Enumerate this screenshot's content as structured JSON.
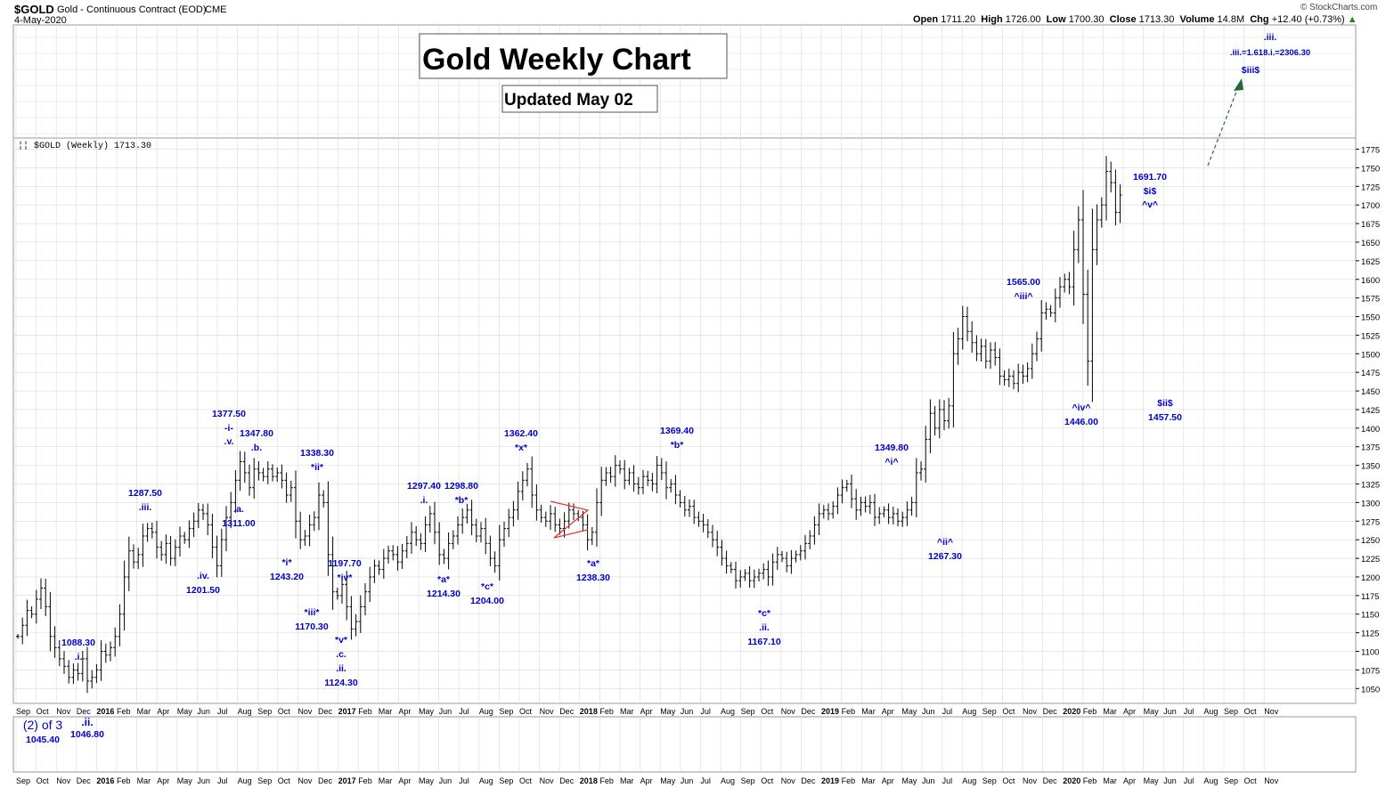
{
  "header": {
    "symbol": "$GOLD",
    "description": "Gold - Continuous Contract (EOD)",
    "exchange": "CME",
    "date": "4-May-2020",
    "copyright": "© StockCharts.com",
    "open_label": "Open",
    "open": "1711.20",
    "high_label": "High",
    "high": "1726.00",
    "low_label": "Low",
    "low": "1700.30",
    "close_label": "Close",
    "close": "1713.30",
    "volume_label": "Volume",
    "volume": "14.8M",
    "chg_label": "Chg",
    "chg": "+12.40 (+0.73%)"
  },
  "title_box": "Gold Weekly Chart",
  "subtitle_box": "Updated May 02",
  "legend": "$GOLD (Weekly) 1713.30",
  "colors": {
    "bars": "#000000",
    "annotation": "#0000cc",
    "triangle": "#e03030",
    "projection": "#1f6b3a",
    "grid": "#d9d9d9"
  },
  "chart_data": {
    "type": "bar",
    "subtype": "ohlc",
    "title": "Gold Weekly Chart",
    "ylim": [
      1030,
      1790
    ],
    "y_ticks": [
      1050,
      1075,
      1100,
      1125,
      1150,
      1175,
      1200,
      1225,
      1250,
      1275,
      1300,
      1325,
      1350,
      1375,
      1400,
      1425,
      1450,
      1475,
      1500,
      1525,
      1550,
      1575,
      1600,
      1625,
      1650,
      1675,
      1700,
      1725,
      1750,
      1775
    ],
    "x_ticks": [
      "Sep",
      "Oct",
      "Nov",
      "Dec",
      "2016",
      "Feb",
      "Mar",
      "Apr",
      "May",
      "Jun",
      "Jul",
      "Aug",
      "Sep",
      "Oct",
      "Nov",
      "Dec",
      "2017",
      "Feb",
      "Mar",
      "Apr",
      "May",
      "Jun",
      "Jul",
      "Aug",
      "Sep",
      "Oct",
      "Nov",
      "Dec",
      "2018",
      "Feb",
      "Mar",
      "Apr",
      "May",
      "Jun",
      "Jul",
      "Aug",
      "Sep",
      "Oct",
      "Nov",
      "Dec",
      "2019",
      "Feb",
      "Mar",
      "Apr",
      "May",
      "Jun",
      "Jul",
      "Aug",
      "Sep",
      "Oct",
      "Nov",
      "Dec",
      "2020",
      "Feb",
      "Mar",
      "Apr",
      "May",
      "Jun",
      "Jul",
      "Aug",
      "Sep",
      "Oct",
      "Nov"
    ],
    "close_series_weekly": [
      1120,
      1135,
      1155,
      1150,
      1170,
      1185,
      1160,
      1120,
      1105,
      1090,
      1080,
      1065,
      1075,
      1070,
      1090,
      1060,
      1065,
      1075,
      1100,
      1095,
      1105,
      1120,
      1150,
      1200,
      1235,
      1220,
      1230,
      1255,
      1265,
      1260,
      1240,
      1230,
      1245,
      1225,
      1240,
      1255,
      1250,
      1265,
      1275,
      1290,
      1285,
      1270,
      1240,
      1215,
      1250,
      1280,
      1300,
      1330,
      1355,
      1340,
      1320,
      1345,
      1340,
      1335,
      1345,
      1335,
      1340,
      1330,
      1310,
      1320,
      1275,
      1250,
      1255,
      1270,
      1280,
      1310,
      1300,
      1230,
      1180,
      1175,
      1190,
      1160,
      1130,
      1140,
      1160,
      1180,
      1200,
      1215,
      1210,
      1225,
      1235,
      1230,
      1220,
      1235,
      1245,
      1260,
      1250,
      1245,
      1270,
      1285,
      1260,
      1230,
      1225,
      1245,
      1255,
      1270,
      1280,
      1290,
      1270,
      1255,
      1265,
      1245,
      1225,
      1215,
      1250,
      1265,
      1280,
      1290,
      1315,
      1330,
      1345,
      1310,
      1290,
      1280,
      1275,
      1285,
      1270,
      1265,
      1275,
      1290,
      1285,
      1280,
      1270,
      1250,
      1260,
      1300,
      1330,
      1340,
      1335,
      1350,
      1345,
      1330,
      1340,
      1325,
      1320,
      1335,
      1330,
      1325,
      1350,
      1340,
      1320,
      1325,
      1310,
      1300,
      1290,
      1295,
      1280,
      1275,
      1270,
      1260,
      1250,
      1240,
      1225,
      1215,
      1210,
      1195,
      1200,
      1205,
      1195,
      1200,
      1205,
      1210,
      1200,
      1220,
      1230,
      1225,
      1215,
      1225,
      1230,
      1235,
      1245,
      1255,
      1270,
      1285,
      1290,
      1285,
      1295,
      1310,
      1320,
      1325,
      1305,
      1290,
      1300,
      1295,
      1300,
      1280,
      1285,
      1290,
      1280,
      1285,
      1275,
      1280,
      1290,
      1300,
      1340,
      1345,
      1385,
      1420,
      1400,
      1425,
      1410,
      1430,
      1500,
      1520,
      1550,
      1530,
      1515,
      1500,
      1510,
      1490,
      1505,
      1495,
      1470,
      1465,
      1470,
      1460,
      1475,
      1470,
      1480,
      1500,
      1520,
      1555,
      1560,
      1555,
      1575,
      1590,
      1600,
      1590,
      1640,
      1680,
      1580,
      1490,
      1640,
      1680,
      1700,
      1745,
      1730,
      1690,
      1713.3
    ],
    "annotations": [
      {
        "label": "1088.30",
        "wave": ".i."
      },
      {
        "label": "1287.50",
        "wave": ".iii."
      },
      {
        "label": "1201.50",
        "wave": ".iv."
      },
      {
        "label": "1377.50",
        "wave": "-i- .v."
      },
      {
        "label": "1347.80",
        "wave": ".b."
      },
      {
        "label": "1311.00",
        "wave": ".a."
      },
      {
        "label": "1338.30",
        "wave": "*ii*"
      },
      {
        "label": "1243.20",
        "wave": "*i*"
      },
      {
        "label": "1197.70",
        "wave": "*iv*"
      },
      {
        "label": "1170.30",
        "wave": "*iii*"
      },
      {
        "label": "1124.30",
        "wave": "*v* .c. .ii."
      },
      {
        "label": "1297.40",
        "wave": ".i."
      },
      {
        "label": "1298.80",
        "wave": "*b*"
      },
      {
        "label": "1214.30",
        "wave": "*a*"
      },
      {
        "label": "1204.00",
        "wave": "*c*"
      },
      {
        "label": "1362.40",
        "wave": "*x*"
      },
      {
        "label": "1238.30",
        "wave": "*a*"
      },
      {
        "label": "1369.40",
        "wave": "*b*"
      },
      {
        "label": "1167.10",
        "wave": "*c* .ii."
      },
      {
        "label": "1349.80",
        "wave": "^i^"
      },
      {
        "label": "1267.30",
        "wave": "^ii^"
      },
      {
        "label": "1565.00",
        "wave": "^iii^"
      },
      {
        "label": "1446.00",
        "wave": "^iv^"
      },
      {
        "label": "1691.70",
        "wave": "$i$ ^v^"
      },
      {
        "label": "1457.50",
        "wave": "$ii$"
      },
      {
        "label": ".iii.=1.618.i.=2306.30",
        "wave": ".iii. $iii$"
      },
      {
        "label": "1045.40",
        "wave": "(2) of 3"
      },
      {
        "label": "1046.80",
        "wave": ".ii."
      }
    ]
  }
}
